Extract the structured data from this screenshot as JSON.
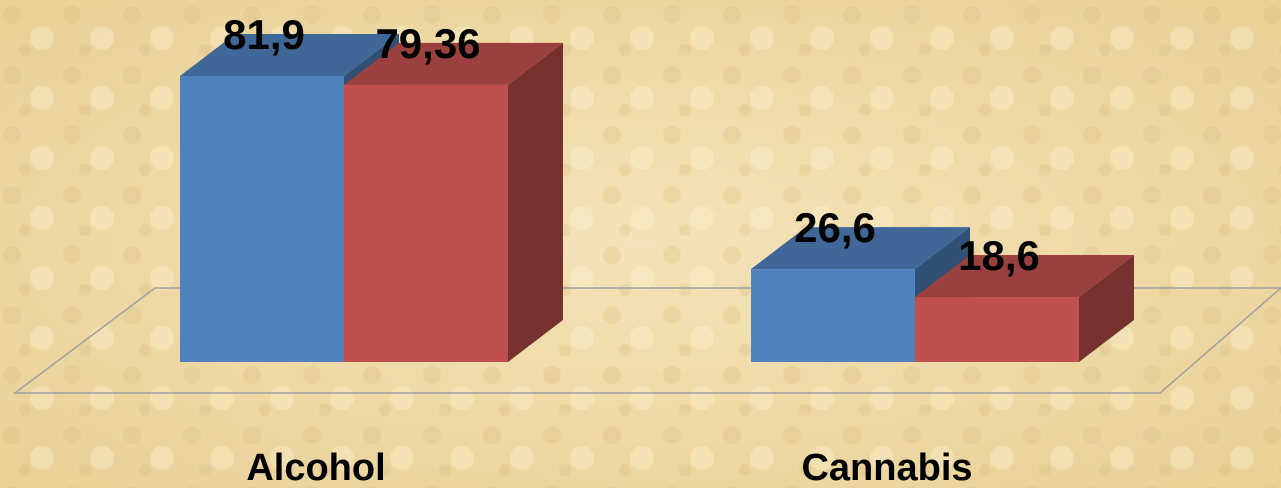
{
  "chart_data": {
    "type": "bar3d",
    "categories": [
      "Alcohol",
      "Cannabis"
    ],
    "series": [
      {
        "color": "#4f81bd",
        "values": [
          81.9,
          26.6
        ],
        "value_labels": [
          "81,9",
          "26,6"
        ]
      },
      {
        "color": "#c0504d",
        "values": [
          79.36,
          18.6
        ],
        "value_labels": [
          "79,36",
          "18,6"
        ]
      }
    ]
  }
}
